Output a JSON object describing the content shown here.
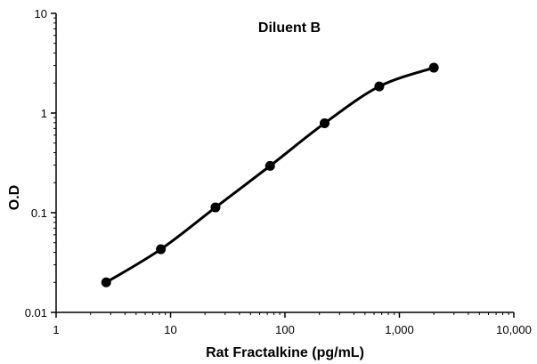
{
  "chart_data": {
    "type": "line",
    "title": "Diluent B",
    "xlabel": "Rat Fractalkine  (pg/mL)",
    "ylabel": "O.D",
    "x_scale": "log",
    "y_scale": "log",
    "xlim": [
      1,
      10000
    ],
    "ylim": [
      0.01,
      10
    ],
    "x_ticks": [
      1,
      10,
      100,
      1000,
      10000
    ],
    "x_tick_labels": [
      "1",
      "10",
      "100",
      "1,000",
      "10,000"
    ],
    "y_ticks": [
      0.01,
      0.1,
      1,
      10
    ],
    "y_tick_labels": [
      "0.01",
      "0.1",
      "1",
      "10"
    ],
    "grid": false,
    "legend": "none",
    "line_color": "#000000",
    "series": [
      {
        "x": [
          2.74,
          8.23,
          24.7,
          74.1,
          222,
          667,
          2000
        ],
        "y": [
          0.02,
          0.043,
          0.113,
          0.295,
          0.79,
          1.85,
          2.85
        ]
      }
    ]
  }
}
